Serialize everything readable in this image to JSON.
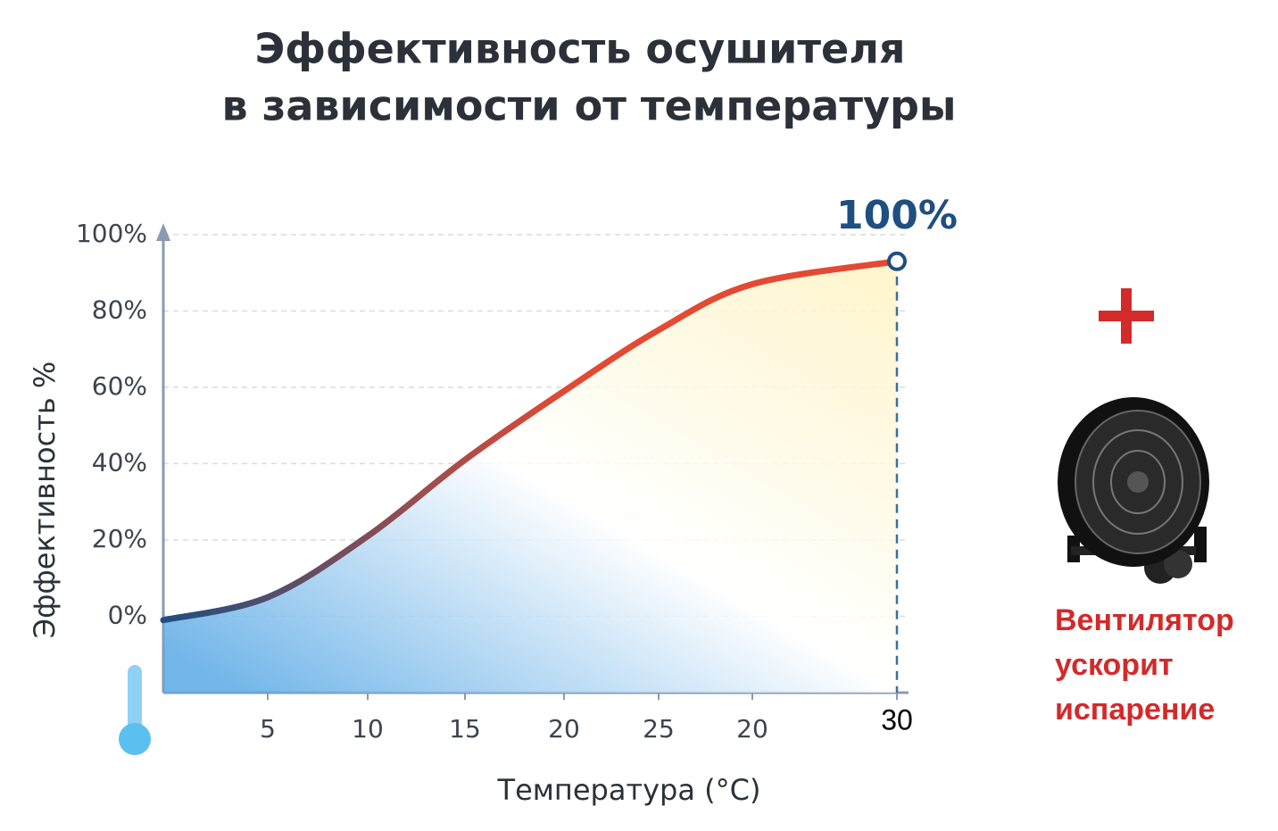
{
  "title": [
    "Эффективность осушителя",
    "в зависимости от температуры"
  ],
  "chart_data": {
    "type": "line",
    "categories": [
      null,
      "5",
      "10",
      "15",
      "20",
      "25",
      "20",
      "30"
    ],
    "values": [
      -1,
      5,
      21,
      41,
      59,
      75,
      87,
      93
    ],
    "ylim": [
      -20,
      103
    ],
    "yticks": [
      {
        "value": 0,
        "label": "0%"
      },
      {
        "value": 20,
        "label": "20%"
      },
      {
        "value": 40,
        "label": "40%"
      },
      {
        "value": 60,
        "label": "60%"
      },
      {
        "value": 80,
        "label": "80%"
      },
      {
        "value": 100,
        "label": "100%"
      }
    ],
    "grid": true,
    "ylabel": "Эффективность %",
    "xlabel": "Температура (°C)",
    "annotation": "100%",
    "line_colors": [
      "#1f4f80",
      "#e24a33"
    ],
    "area_colors": [
      "#5aa9e6",
      "#fff4c8"
    ]
  },
  "side_note": [
    "Вентилятор",
    "ускорит",
    "испарение"
  ]
}
